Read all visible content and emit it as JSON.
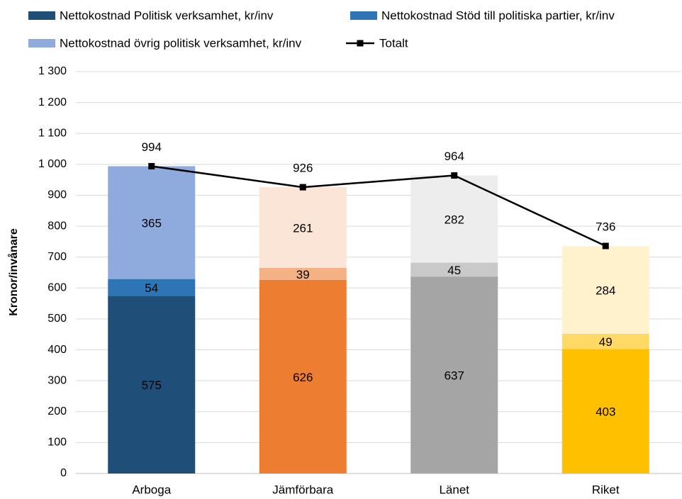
{
  "chart_data": {
    "type": "bar",
    "stacked": true,
    "ylabel": "Kronor/invånare",
    "categories": [
      "Arboga",
      "Jämförbara",
      "Länet",
      "Riket"
    ],
    "series": [
      {
        "name": "Nettokostnad Politisk verksamhet, kr/inv",
        "color": "#1f4e79",
        "colors": [
          "#1f4e79",
          "#ed7d31",
          "#a5a5a5",
          "#ffc000"
        ],
        "values": [
          575,
          626,
          637,
          403
        ]
      },
      {
        "name": "Nettokostnad Stöd till politiska partier, kr/inv",
        "color": "#2e75b6",
        "colors": [
          "#2e75b6",
          "#f4b183",
          "#c9c9c9",
          "#ffd966"
        ],
        "values": [
          54,
          39,
          45,
          49
        ]
      },
      {
        "name": "Nettokostnad övrig politisk verksamhet, kr/inv",
        "color": "#8faadc",
        "colors": [
          "#8faadc",
          "#fbe5d6",
          "#ededed",
          "#fff2cc"
        ],
        "values": [
          365,
          261,
          282,
          284
        ]
      },
      {
        "name": "Totalt",
        "type": "line",
        "color": "#000000",
        "values": [
          994,
          926,
          964,
          736
        ]
      }
    ],
    "ylim": [
      0,
      1300
    ],
    "yticks": [
      0,
      100,
      200,
      300,
      400,
      500,
      600,
      700,
      800,
      900,
      {
        "value": 1000,
        "label": "1 000"
      },
      {
        "value": 1100,
        "label": "1 100"
      },
      {
        "value": 1200,
        "label": "1 200"
      },
      {
        "value": 1300,
        "label": "1 300"
      }
    ],
    "grid": true,
    "legend": "top"
  }
}
